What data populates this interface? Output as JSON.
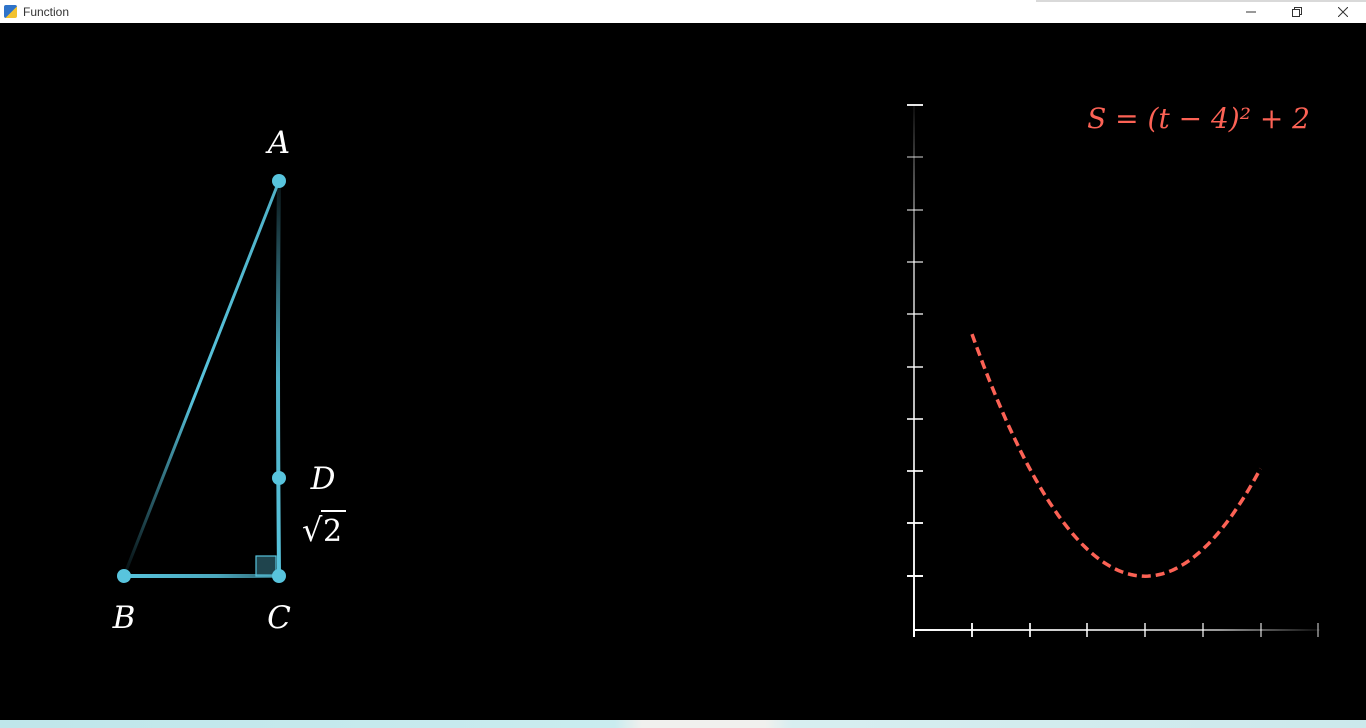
{
  "window": {
    "title": "Function",
    "minimize_icon": "minimize-icon",
    "restore_icon": "restore-icon",
    "close_icon": "close-icon"
  },
  "colors": {
    "triangle": "#58c4dd",
    "curve": "#fc6255",
    "axes": "#ffffff",
    "label": "#ffffff"
  },
  "triangle": {
    "labels": {
      "a": "A",
      "b": "B",
      "c": "C",
      "d": "D"
    },
    "segment_label_radical": "√",
    "segment_label_value": "2"
  },
  "graph": {
    "formula": "S = (t − 4)² + 2"
  }
}
